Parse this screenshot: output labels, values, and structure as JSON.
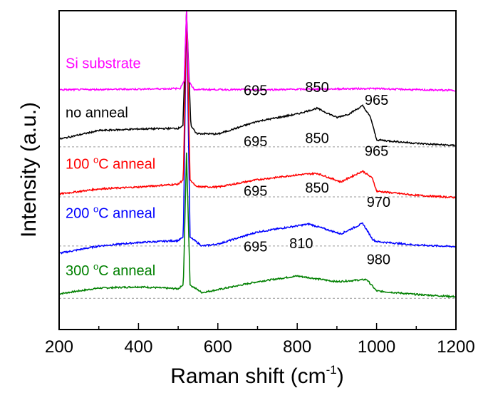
{
  "chart_data": {
    "type": "line",
    "title": "",
    "xlabel": "Raman shift (cm",
    "xlabel_sup": "-1",
    "xlabel_end": ")",
    "ylabel": "Intensity (a.u.)",
    "xlim": [
      200,
      1200
    ],
    "ylim": [
      0,
      100
    ],
    "xticks": [
      200,
      400,
      600,
      800,
      1000,
      1200
    ],
    "minor_xticks": [
      300,
      500,
      700,
      900,
      1100
    ],
    "y_tick_labels": false,
    "grid": false,
    "series": [
      {
        "name": "Si substrate",
        "color": "#ff00ff",
        "baseline": null,
        "label_y": 82,
        "points": [
          [
            200,
            75.2
          ],
          [
            400,
            75.4
          ],
          [
            505,
            75.6
          ],
          [
            515,
            78
          ],
          [
            521,
            100
          ],
          [
            527,
            78
          ],
          [
            540,
            75.3
          ],
          [
            700,
            75.2
          ],
          [
            990,
            75.6
          ],
          [
            1100,
            75.2
          ],
          [
            1200,
            75.0
          ]
        ],
        "annotations": []
      },
      {
        "name": "no anneal",
        "color": "#000000",
        "baseline": 57.3,
        "label_y": 66.5,
        "points": [
          [
            200,
            59.7
          ],
          [
            300,
            62.4
          ],
          [
            400,
            62.9
          ],
          [
            500,
            63.1
          ],
          [
            512,
            64
          ],
          [
            521,
            100
          ],
          [
            532,
            64
          ],
          [
            545,
            61.5
          ],
          [
            600,
            61.3
          ],
          [
            700,
            65.3
          ],
          [
            800,
            67.6
          ],
          [
            850,
            69.4
          ],
          [
            900,
            66.5
          ],
          [
            930,
            67.6
          ],
          [
            965,
            70.2
          ],
          [
            985,
            66.5
          ],
          [
            1000,
            59.5
          ],
          [
            1100,
            58.4
          ],
          [
            1200,
            57.7
          ]
        ],
        "annotations": [
          {
            "text": "695",
            "x": 695,
            "y": 73.5
          },
          {
            "text": "850",
            "x": 850,
            "y": 74.5
          },
          {
            "text": "965",
            "x": 1000,
            "y": 70.5
          }
        ]
      },
      {
        "name": "100 °C anneal",
        "name_parts": [
          "100 ",
          "o",
          "C anneal"
        ],
        "color": "#ff0000",
        "baseline": 41.6,
        "label_y": 50.5,
        "points": [
          [
            200,
            42.5
          ],
          [
            300,
            44.1
          ],
          [
            400,
            44.7
          ],
          [
            500,
            45.6
          ],
          [
            513,
            47
          ],
          [
            521,
            100
          ],
          [
            530,
            47
          ],
          [
            545,
            44.8
          ],
          [
            600,
            44.7
          ],
          [
            700,
            47.0
          ],
          [
            800,
            48.5
          ],
          [
            850,
            49.0
          ],
          [
            910,
            46.3
          ],
          [
            965,
            49.7
          ],
          [
            990,
            47.4
          ],
          [
            1000,
            43.4
          ],
          [
            1100,
            42.1
          ],
          [
            1200,
            41.4
          ]
        ],
        "annotations": [
          {
            "text": "695",
            "x": 695,
            "y": 57.5
          },
          {
            "text": "850",
            "x": 850,
            "y": 58.5
          },
          {
            "text": "965",
            "x": 1000,
            "y": 54.5
          }
        ]
      },
      {
        "name": "200 °C anneal",
        "name_parts": [
          "200 ",
          "o",
          "C anneal"
        ],
        "color": "#0000ff",
        "baseline": 26.2,
        "label_y": 35,
        "points": [
          [
            200,
            23.9
          ],
          [
            300,
            26.2
          ],
          [
            400,
            27.3
          ],
          [
            500,
            27.9
          ],
          [
            513,
            29
          ],
          [
            521,
            100
          ],
          [
            530,
            29
          ],
          [
            560,
            26.2
          ],
          [
            600,
            26.8
          ],
          [
            700,
            30.6
          ],
          [
            830,
            33.1
          ],
          [
            910,
            30.0
          ],
          [
            965,
            33.3
          ],
          [
            990,
            28.3
          ],
          [
            1000,
            27.6
          ],
          [
            1100,
            26.5
          ],
          [
            1200,
            26.0
          ]
        ],
        "annotations": [
          {
            "text": "695",
            "x": 695,
            "y": 42
          },
          {
            "text": "850",
            "x": 850,
            "y": 43
          },
          {
            "text": "970",
            "x": 1005,
            "y": 38.5
          }
        ]
      },
      {
        "name": "300 °C anneal",
        "name_parts": [
          "300 ",
          "o",
          "C anneal"
        ],
        "color": "#008000",
        "baseline": 9.8,
        "label_y": 17,
        "points": [
          [
            200,
            11.2
          ],
          [
            300,
            13.0
          ],
          [
            400,
            13.4
          ],
          [
            500,
            12.8
          ],
          [
            513,
            14
          ],
          [
            521,
            55.5
          ],
          [
            530,
            14
          ],
          [
            560,
            11.6
          ],
          [
            600,
            12.5
          ],
          [
            700,
            15.0
          ],
          [
            800,
            16.8
          ],
          [
            900,
            15.0
          ],
          [
            975,
            15.7
          ],
          [
            1000,
            12.1
          ],
          [
            1100,
            11.0
          ],
          [
            1200,
            10.3
          ]
        ],
        "annotations": [
          {
            "text": "695",
            "x": 695,
            "y": 24.5
          },
          {
            "text": "810",
            "x": 810,
            "y": 25.5
          },
          {
            "text": "980",
            "x": 1005,
            "y": 20.5
          }
        ]
      }
    ]
  }
}
